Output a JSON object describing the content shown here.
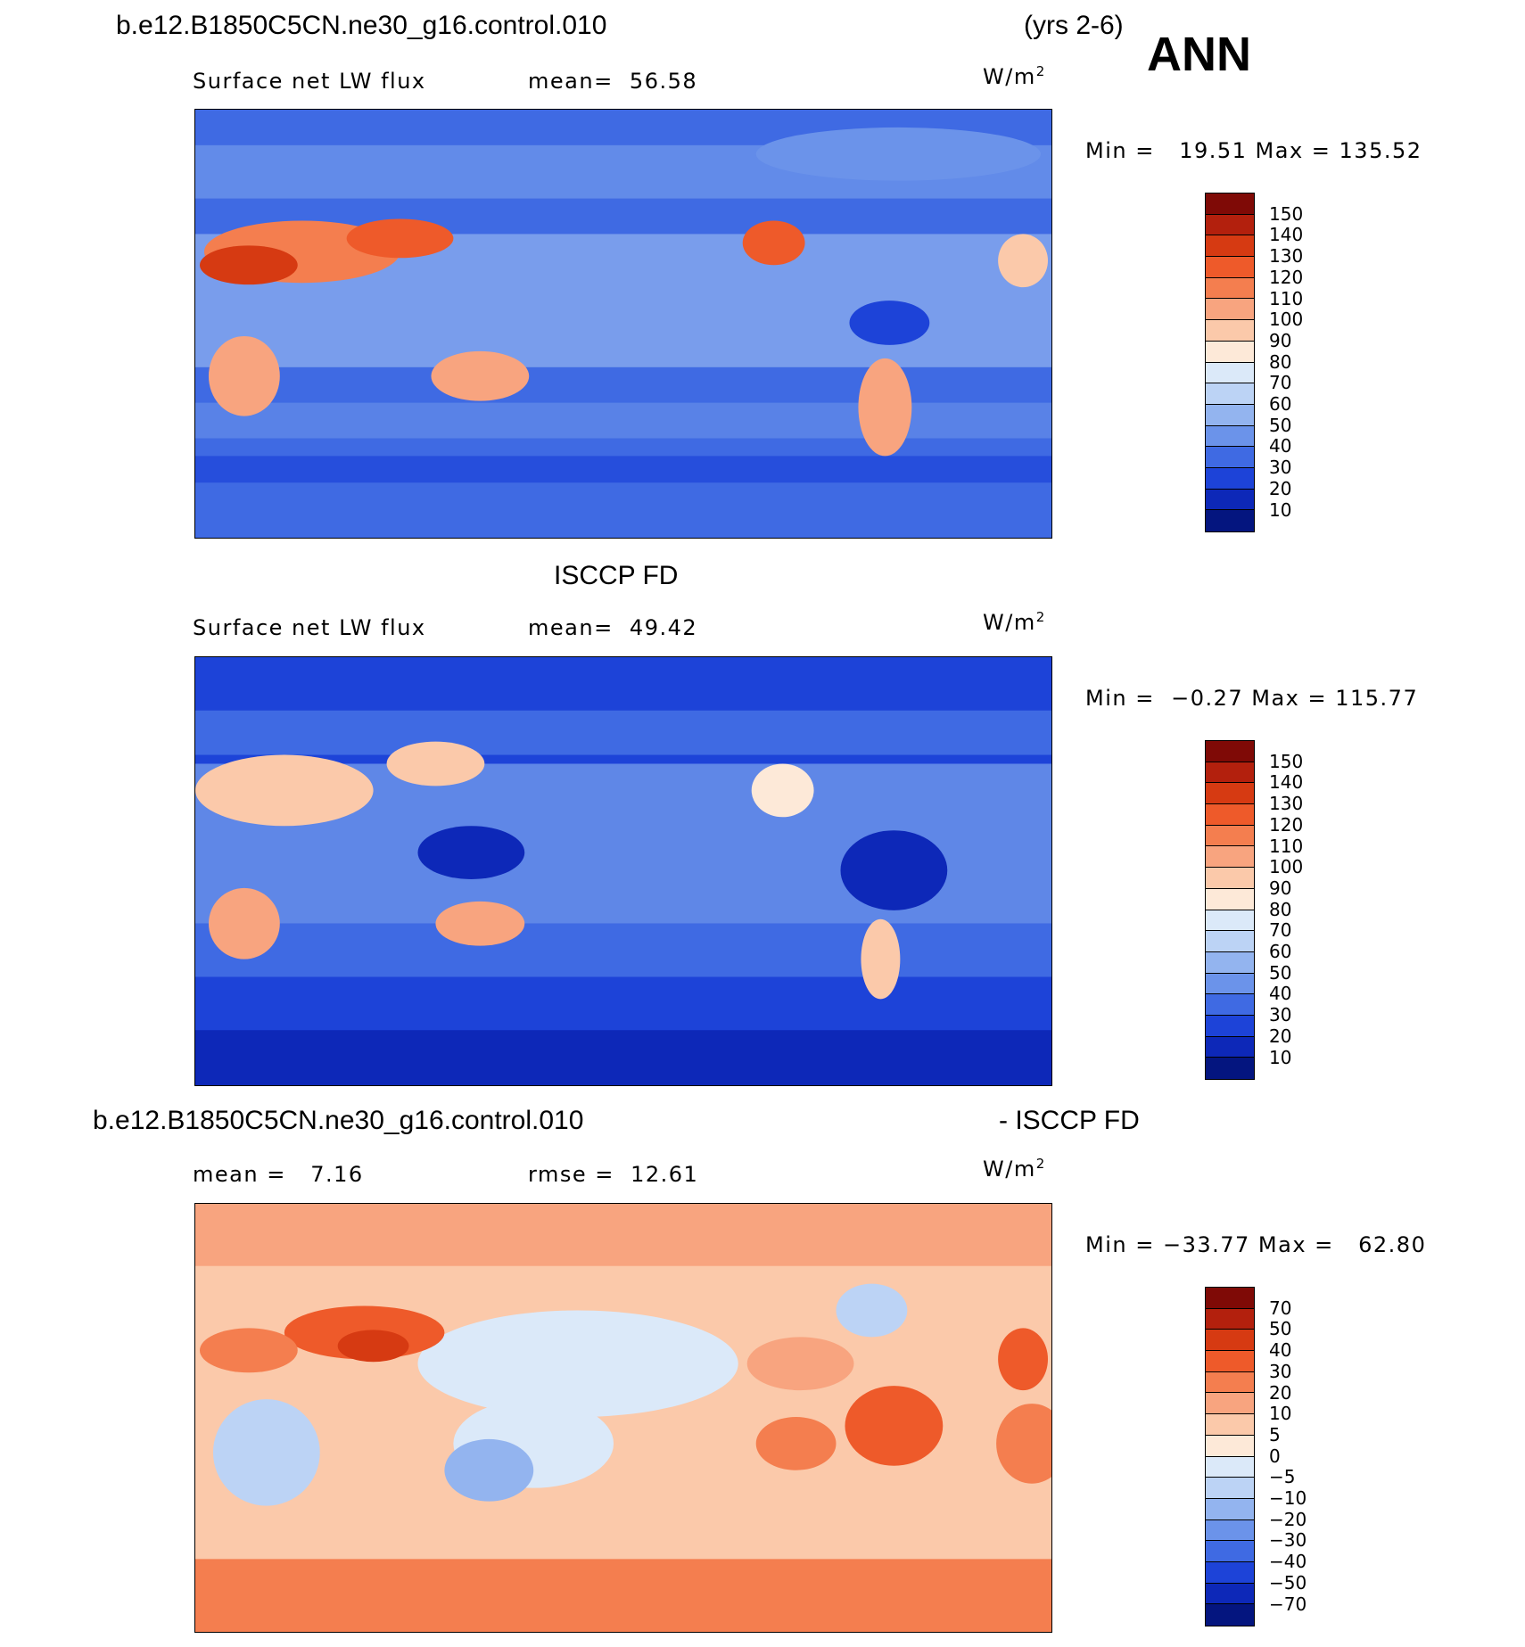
{
  "header": {
    "case_name": "b.e12.B1850C5CN.ne30_g16.control.010",
    "years": "(yrs 2-6)",
    "season": "ANN"
  },
  "panels": [
    {
      "id": "model",
      "title": "",
      "field": "Surface net LW flux",
      "stat_text": "mean=  56.58",
      "units": "W/m",
      "units_sup": "2",
      "minmax": "Min =   19.51 Max = 135.52",
      "colorbar": {
        "labels": [
          "150",
          "140",
          "130",
          "120",
          "110",
          "100",
          "90",
          "80",
          "70",
          "60",
          "50",
          "40",
          "30",
          "20",
          "10"
        ],
        "colors": [
          "#7f0a06",
          "#b3200d",
          "#d63a12",
          "#ee5a2a",
          "#f47e4f",
          "#f8a47f",
          "#fbc9aa",
          "#fde9d8",
          "#dbe9f9",
          "#bcd3f5",
          "#93b4ef",
          "#6b93ea",
          "#3f6ae3",
          "#1d43d8",
          "#0d28b8",
          "#04157f"
        ]
      }
    },
    {
      "id": "obs",
      "title": "ISCCP FD",
      "field": "Surface net LW flux",
      "stat_text": "mean=  49.42",
      "units": "W/m",
      "units_sup": "2",
      "minmax": "Min =  −0.27 Max = 115.77",
      "colorbar": {
        "labels": [
          "150",
          "140",
          "130",
          "120",
          "110",
          "100",
          "90",
          "80",
          "70",
          "60",
          "50",
          "40",
          "30",
          "20",
          "10"
        ],
        "colors": [
          "#7f0a06",
          "#b3200d",
          "#d63a12",
          "#ee5a2a",
          "#f47e4f",
          "#f8a47f",
          "#fbc9aa",
          "#fde9d8",
          "#dbe9f9",
          "#bcd3f5",
          "#93b4ef",
          "#6b93ea",
          "#3f6ae3",
          "#1d43d8",
          "#0d28b8",
          "#04157f"
        ]
      }
    },
    {
      "id": "diff",
      "title_left": "b.e12.B1850C5CN.ne30_g16.control.010",
      "title_right": "- ISCCP FD",
      "stat_left": "mean =   7.16",
      "stat_right": "rmse =  12.61",
      "units": "W/m",
      "units_sup": "2",
      "minmax": "Min = −33.77 Max =   62.80",
      "colorbar": {
        "labels": [
          "70",
          "50",
          "40",
          "30",
          "20",
          "10",
          "5",
          "0",
          "−5",
          "−10",
          "−20",
          "−30",
          "−40",
          "−50",
          "−70"
        ],
        "colors": [
          "#7f0a06",
          "#b3200d",
          "#d63a12",
          "#ee5a2a",
          "#f47e4f",
          "#f8a47f",
          "#fbc9aa",
          "#fde9d8",
          "#dbe9f9",
          "#bcd3f5",
          "#93b4ef",
          "#6b93ea",
          "#3f6ae3",
          "#1d43d8",
          "#0d28b8",
          "#04157f"
        ]
      }
    }
  ]
}
